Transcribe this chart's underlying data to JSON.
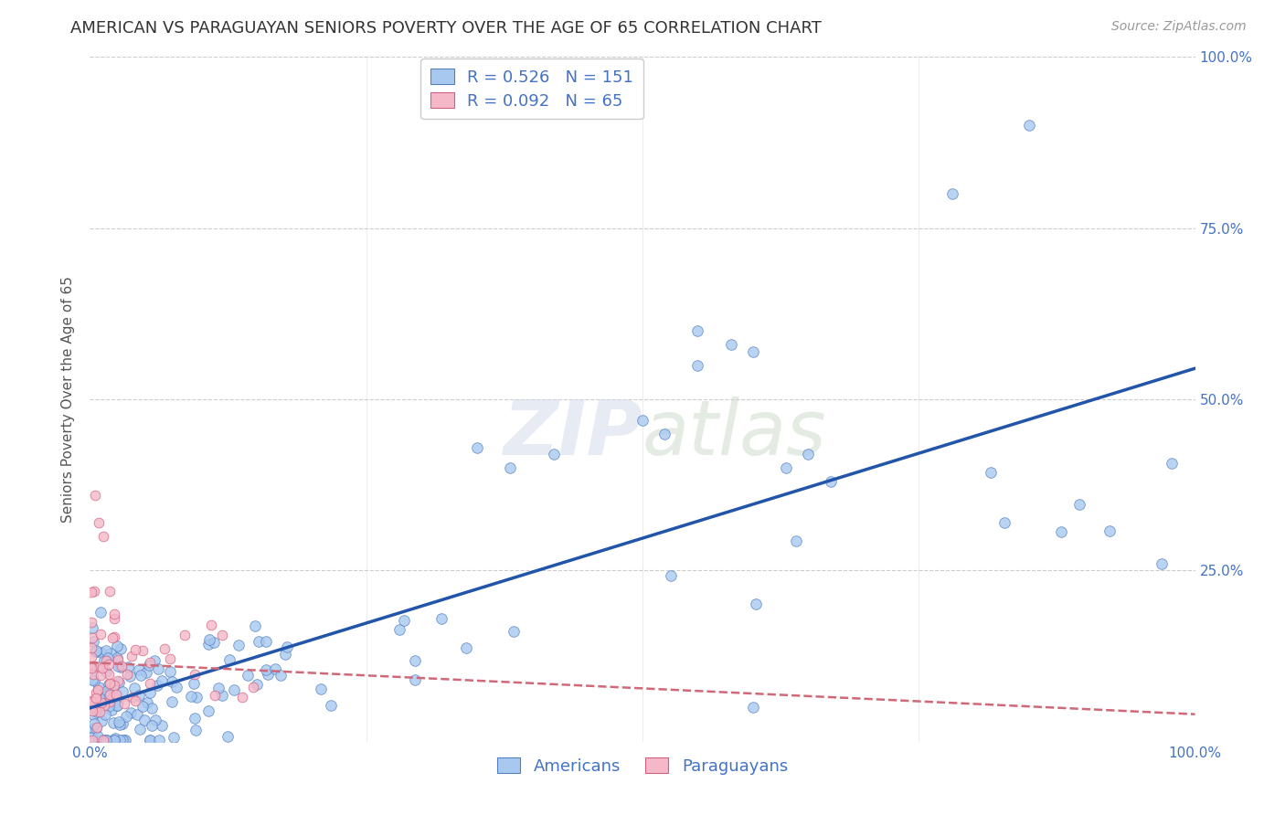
{
  "title": "AMERICAN VS PARAGUAYAN SENIORS POVERTY OVER THE AGE OF 65 CORRELATION CHART",
  "source": "Source: ZipAtlas.com",
  "ylabel": "Seniors Poverty Over the Age of 65",
  "R_american": 0.526,
  "N_american": 151,
  "R_paraguayan": 0.092,
  "N_paraguayan": 65,
  "color_american": "#a8c8f0",
  "color_paraguayan": "#f5b8c8",
  "edge_american": "#5580c0",
  "edge_paraguayan": "#d06080",
  "line_color_american": "#2255aa",
  "line_color_paraguayan": "#d06878",
  "legend_label1": "Americans",
  "legend_label2": "Paraguayans",
  "title_fontsize": 13,
  "source_fontsize": 10,
  "axis_label_fontsize": 11,
  "tick_fontsize": 11,
  "tick_color": "#4472c4",
  "background_color": "#ffffff",
  "grid_color": "#cccccc"
}
